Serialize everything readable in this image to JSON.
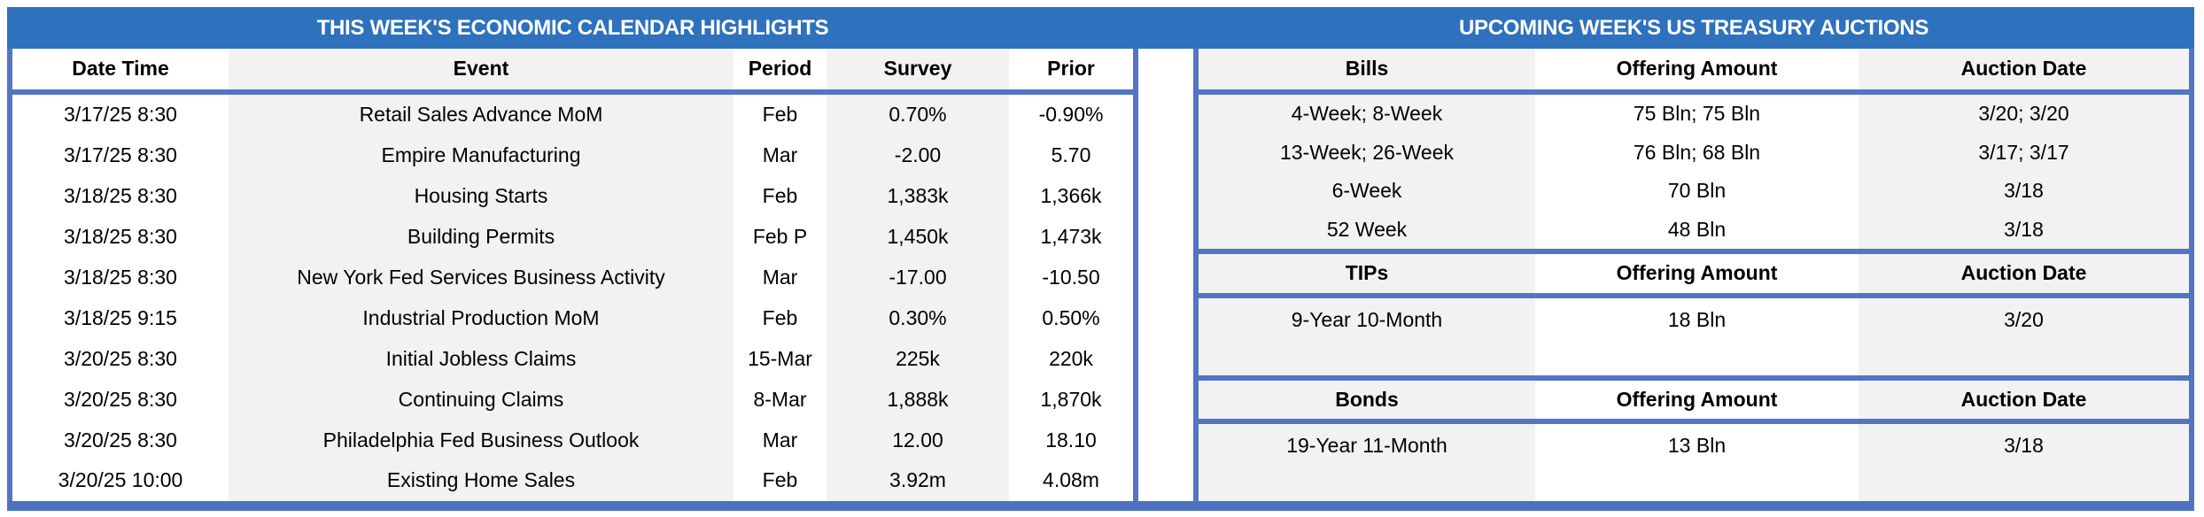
{
  "colors": {
    "band_blue": "#2e71bc",
    "border_blue": "#5375c5",
    "stripe_gray": "#f2f2f2"
  },
  "left_table": {
    "title": "THIS WEEK'S ECONOMIC CALENDAR HIGHLIGHTS",
    "columns": [
      "Date Time",
      "Event",
      "Period",
      "Survey",
      "Prior"
    ],
    "rows": [
      {
        "date_time": "3/17/25 8:30",
        "event": "Retail Sales Advance MoM",
        "period": "Feb",
        "survey": "0.70%",
        "prior": "-0.90%"
      },
      {
        "date_time": "3/17/25 8:30",
        "event": "Empire Manufacturing",
        "period": "Mar",
        "survey": "-2.00",
        "prior": "5.70"
      },
      {
        "date_time": "3/18/25 8:30",
        "event": "Housing Starts",
        "period": "Feb",
        "survey": "1,383k",
        "prior": "1,366k"
      },
      {
        "date_time": "3/18/25 8:30",
        "event": "Building Permits",
        "period": "Feb P",
        "survey": "1,450k",
        "prior": "1,473k"
      },
      {
        "date_time": "3/18/25 8:30",
        "event": "New York Fed Services Business Activity",
        "period": "Mar",
        "survey": "-17.00",
        "prior": "-10.50"
      },
      {
        "date_time": "3/18/25 9:15",
        "event": "Industrial Production MoM",
        "period": "Feb",
        "survey": "0.30%",
        "prior": "0.50%"
      },
      {
        "date_time": "3/20/25 8:30",
        "event": "Initial Jobless Claims",
        "period": "15-Mar",
        "survey": "225k",
        "prior": "220k"
      },
      {
        "date_time": "3/20/25 8:30",
        "event": "Continuing Claims",
        "period": "8-Mar",
        "survey": "1,888k",
        "prior": "1,870k"
      },
      {
        "date_time": "3/20/25 8:30",
        "event": "Philadelphia Fed Business Outlook",
        "period": "Mar",
        "survey": "12.00",
        "prior": "18.10"
      },
      {
        "date_time": "3/20/25 10:00",
        "event": "Existing Home Sales",
        "period": "Feb",
        "survey": "3.92m",
        "prior": "4.08m"
      }
    ]
  },
  "right_table": {
    "title": "UPCOMING WEEK'S US TREASURY AUCTIONS",
    "sections": [
      {
        "name": "Bills",
        "columns": [
          "Bills",
          "Offering Amount",
          "Auction Date"
        ],
        "rows": [
          {
            "security": "4-Week; 8-Week",
            "offering_amount": "75 Bln; 75 Bln",
            "auction_date": "3/20; 3/20"
          },
          {
            "security": "13-Week; 26-Week",
            "offering_amount": "76 Bln; 68 Bln",
            "auction_date": "3/17; 3/17"
          },
          {
            "security": "6-Week",
            "offering_amount": "70 Bln",
            "auction_date": "3/18"
          },
          {
            "security": "52 Week",
            "offering_amount": "48 Bln",
            "auction_date": "3/18"
          }
        ]
      },
      {
        "name": "TIPs",
        "columns": [
          "TIPs",
          "Offering Amount",
          "Auction Date"
        ],
        "rows": [
          {
            "security": "9-Year 10-Month",
            "offering_amount": "18 Bln",
            "auction_date": "3/20"
          }
        ]
      },
      {
        "name": "Bonds",
        "columns": [
          "Bonds",
          "Offering Amount",
          "Auction Date"
        ],
        "rows": [
          {
            "security": "19-Year 11-Month",
            "offering_amount": "13 Bln",
            "auction_date": "3/18"
          }
        ]
      }
    ]
  }
}
